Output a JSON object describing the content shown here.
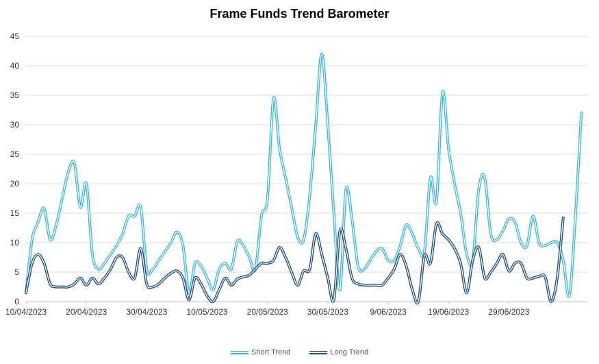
{
  "chart_data": {
    "type": "line",
    "title": "Frame Funds Trend Barometer",
    "xlabel": "",
    "ylabel": "",
    "ylim": [
      0,
      45
    ],
    "yticks": [
      0,
      5,
      10,
      15,
      20,
      25,
      30,
      35,
      40,
      45
    ],
    "x_tick_labels": [
      "10/04/2023",
      "20/04/2023",
      "30/04/2023",
      "10/05/2023",
      "20/05/2023",
      "30/05/2023",
      "9/06/2023",
      "19/06/2023",
      "29/06/2023"
    ],
    "grid": "horizontal",
    "legend_position": "bottom",
    "series": [
      {
        "name": "Short Trend",
        "color": "#3fb6dc",
        "points": [
          [
            0,
            1.5
          ],
          [
            1,
            10.5
          ],
          [
            2,
            13.5
          ],
          [
            3,
            15.8
          ],
          [
            4,
            10.5
          ],
          [
            5,
            13
          ],
          [
            6,
            17.5
          ],
          [
            7,
            22
          ],
          [
            8,
            23.5
          ],
          [
            9,
            16
          ],
          [
            10,
            20
          ],
          [
            11,
            8
          ],
          [
            12,
            5.5
          ],
          [
            13,
            6.5
          ],
          [
            14,
            8
          ],
          [
            15,
            9.5
          ],
          [
            16,
            11.5
          ],
          [
            17,
            14.5
          ],
          [
            18,
            14.5
          ],
          [
            19,
            16
          ],
          [
            20,
            5.5
          ],
          [
            21,
            5.5
          ],
          [
            22,
            7
          ],
          [
            23,
            8.5
          ],
          [
            24,
            10
          ],
          [
            25,
            11.8
          ],
          [
            26,
            9.5
          ],
          [
            27,
            1.5
          ],
          [
            28,
            6.5
          ],
          [
            29,
            6
          ],
          [
            30,
            4
          ],
          [
            31,
            2
          ],
          [
            32,
            5.5
          ],
          [
            33,
            6.5
          ],
          [
            34,
            5.5
          ],
          [
            35,
            10.2
          ],
          [
            36,
            9.5
          ],
          [
            37,
            7.5
          ],
          [
            38,
            5.5
          ],
          [
            39,
            14.5
          ],
          [
            40,
            17.5
          ],
          [
            41,
            34.5
          ],
          [
            42,
            26
          ],
          [
            43,
            21
          ],
          [
            44,
            16
          ],
          [
            45,
            11
          ],
          [
            46,
            10.5
          ],
          [
            47,
            18
          ],
          [
            48,
            30
          ],
          [
            49,
            42
          ],
          [
            50,
            30
          ],
          [
            51,
            15
          ],
          [
            52,
            2
          ],
          [
            53,
            19
          ],
          [
            54,
            14
          ],
          [
            55,
            6
          ],
          [
            56,
            5.5
          ],
          [
            57,
            7
          ],
          [
            58,
            8.5
          ],
          [
            59,
            9
          ],
          [
            60,
            7
          ],
          [
            61,
            7
          ],
          [
            62,
            9.5
          ],
          [
            63,
            13
          ],
          [
            64,
            11.5
          ],
          [
            65,
            9
          ],
          [
            66,
            8.5
          ],
          [
            67,
            21
          ],
          [
            68,
            17
          ],
          [
            69,
            35.5
          ],
          [
            70,
            26
          ],
          [
            71,
            20
          ],
          [
            72,
            15
          ],
          [
            73,
            8
          ],
          [
            74,
            7
          ],
          [
            75,
            19
          ],
          [
            76,
            21
          ],
          [
            77,
            11.5
          ],
          [
            78,
            10.5
          ],
          [
            79,
            12
          ],
          [
            80,
            14
          ],
          [
            81,
            13.5
          ],
          [
            82,
            10
          ],
          [
            83,
            9.5
          ],
          [
            84,
            14.5
          ],
          [
            85,
            10
          ],
          [
            86,
            9.5
          ],
          [
            87,
            10
          ],
          [
            88,
            10
          ],
          [
            89,
            7
          ],
          [
            90,
            1
          ],
          [
            91,
            14
          ],
          [
            92,
            32
          ]
        ]
      },
      {
        "name": "Long Trend",
        "color": "#1f4e79",
        "points": [
          [
            0,
            1.5
          ],
          [
            1,
            6.5
          ],
          [
            2,
            8
          ],
          [
            3,
            6.5
          ],
          [
            4,
            3
          ],
          [
            5,
            2.5
          ],
          [
            6,
            2.5
          ],
          [
            7,
            2.5
          ],
          [
            8,
            3
          ],
          [
            9,
            4
          ],
          [
            10,
            2.8
          ],
          [
            11,
            4
          ],
          [
            12,
            3
          ],
          [
            13,
            4
          ],
          [
            14,
            5.5
          ],
          [
            15,
            7.5
          ],
          [
            16,
            7.5
          ],
          [
            17,
            5
          ],
          [
            18,
            4
          ],
          [
            19,
            9
          ],
          [
            20,
            3
          ],
          [
            21,
            2.5
          ],
          [
            22,
            3
          ],
          [
            23,
            4
          ],
          [
            24,
            4.8
          ],
          [
            25,
            5.2
          ],
          [
            26,
            4
          ],
          [
            27,
            0.3
          ],
          [
            28,
            4
          ],
          [
            29,
            3
          ],
          [
            30,
            1
          ],
          [
            31,
            0
          ],
          [
            32,
            2
          ],
          [
            33,
            4
          ],
          [
            34,
            2.8
          ],
          [
            35,
            3.8
          ],
          [
            36,
            4.2
          ],
          [
            37,
            4.5
          ],
          [
            38,
            5.5
          ],
          [
            39,
            6.5
          ],
          [
            40,
            6.5
          ],
          [
            41,
            7
          ],
          [
            42,
            9.2
          ],
          [
            43,
            7.5
          ],
          [
            44,
            5
          ],
          [
            45,
            2.8
          ],
          [
            46,
            5.2
          ],
          [
            47,
            5.5
          ],
          [
            48,
            11.5
          ],
          [
            49,
            8
          ],
          [
            50,
            4
          ],
          [
            51,
            0.3
          ],
          [
            52,
            12
          ],
          [
            53,
            9
          ],
          [
            54,
            4
          ],
          [
            55,
            3
          ],
          [
            56,
            2.8
          ],
          [
            57,
            2.8
          ],
          [
            58,
            2.8
          ],
          [
            59,
            2.8
          ],
          [
            60,
            4
          ],
          [
            61,
            5.5
          ],
          [
            62,
            8
          ],
          [
            63,
            6
          ],
          [
            64,
            2
          ],
          [
            65,
            0
          ],
          [
            66,
            7.8
          ],
          [
            67,
            6.5
          ],
          [
            68,
            13.2
          ],
          [
            69,
            11.5
          ],
          [
            70,
            10.5
          ],
          [
            71,
            9
          ],
          [
            72,
            6.5
          ],
          [
            73,
            1.5
          ],
          [
            74,
            7
          ],
          [
            75,
            9.2
          ],
          [
            76,
            4
          ],
          [
            77,
            5
          ],
          [
            78,
            6.5
          ],
          [
            79,
            8
          ],
          [
            80,
            5.2
          ],
          [
            81,
            6.5
          ],
          [
            82,
            6.5
          ],
          [
            83,
            4
          ],
          [
            84,
            4
          ],
          [
            85,
            4.3
          ],
          [
            86,
            4.2
          ],
          [
            87,
            0
          ],
          [
            88,
            4
          ],
          [
            89,
            14.2
          ]
        ]
      }
    ]
  }
}
